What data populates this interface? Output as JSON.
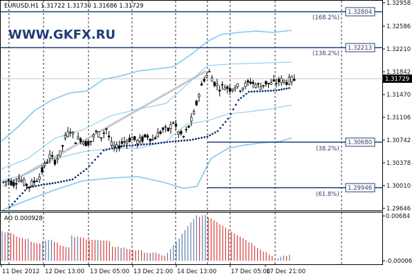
{
  "symbol_header": "EURUSD,H1  1.31722  1.31730  1.31686  1.31729",
  "watermark": "WWW.GKFX.RU",
  "colors": {
    "bull_bear": "#000000",
    "bollinger": "#7ec8ee",
    "ma_dots": "#0b2b73",
    "fibo_lines": "#1f3c78",
    "ao_up": "#5c7ca8",
    "ao_down": "#d63a3a",
    "trendline": "#c8c8c8"
  },
  "price_axis": {
    "ticks": [
      "1.32958",
      "1.32586",
      "1.32210",
      "1.31842",
      "1.31470",
      "1.31106",
      "1.30742",
      "1.30378",
      "1.30010",
      "1.29646"
    ],
    "current_price": "1.31729"
  },
  "fibo_levels": [
    {
      "pct": "(168.2%)",
      "price": "1.32804"
    },
    {
      "pct": "(138.2%)",
      "price": "1.32213"
    },
    {
      "pct": "(38.2%)",
      "price": "1.30680"
    },
    {
      "pct": "(61.8%)",
      "price": "1.29946"
    }
  ],
  "indicator": {
    "label": "AO 0.000928",
    "axis_top": "0.00684",
    "axis_bottom": "-0.00006"
  },
  "time_axis": [
    "11 Dec 2012",
    "12 Dec 13:00",
    "13 Dec 05:00",
    "13 Dec 21:00",
    "14 Dec 13:00",
    "17 Dec 05:00",
    "17 Dec 21:00"
  ],
  "chart_data": {
    "type": "candlestick",
    "title": "EURUSD,H1",
    "ylim": [
      1.2955,
      1.3305
    ],
    "close_approx": [
      1.3002,
      1.3005,
      1.3,
      1.3008,
      1.3001,
      1.2996,
      1.3003,
      1.3012,
      1.303,
      1.3045,
      1.3038,
      1.3049,
      1.3076,
      1.309,
      1.3072,
      1.3075,
      1.3067,
      1.3071,
      1.3085,
      1.3079,
      1.3091,
      1.3064,
      1.3059,
      1.3068,
      1.3072,
      1.3076,
      1.307,
      1.3074,
      1.308,
      1.3073,
      1.3082,
      1.309,
      1.3089,
      1.3103,
      1.3085,
      1.3078,
      1.3095,
      1.3116,
      1.315,
      1.3175,
      1.3185,
      1.3168,
      1.316,
      1.3162,
      1.3158,
      1.3163,
      1.3159,
      1.3164,
      1.317,
      1.3165,
      1.3162,
      1.3168,
      1.3166,
      1.3169,
      1.3172,
      1.317,
      1.3173
    ]
  }
}
